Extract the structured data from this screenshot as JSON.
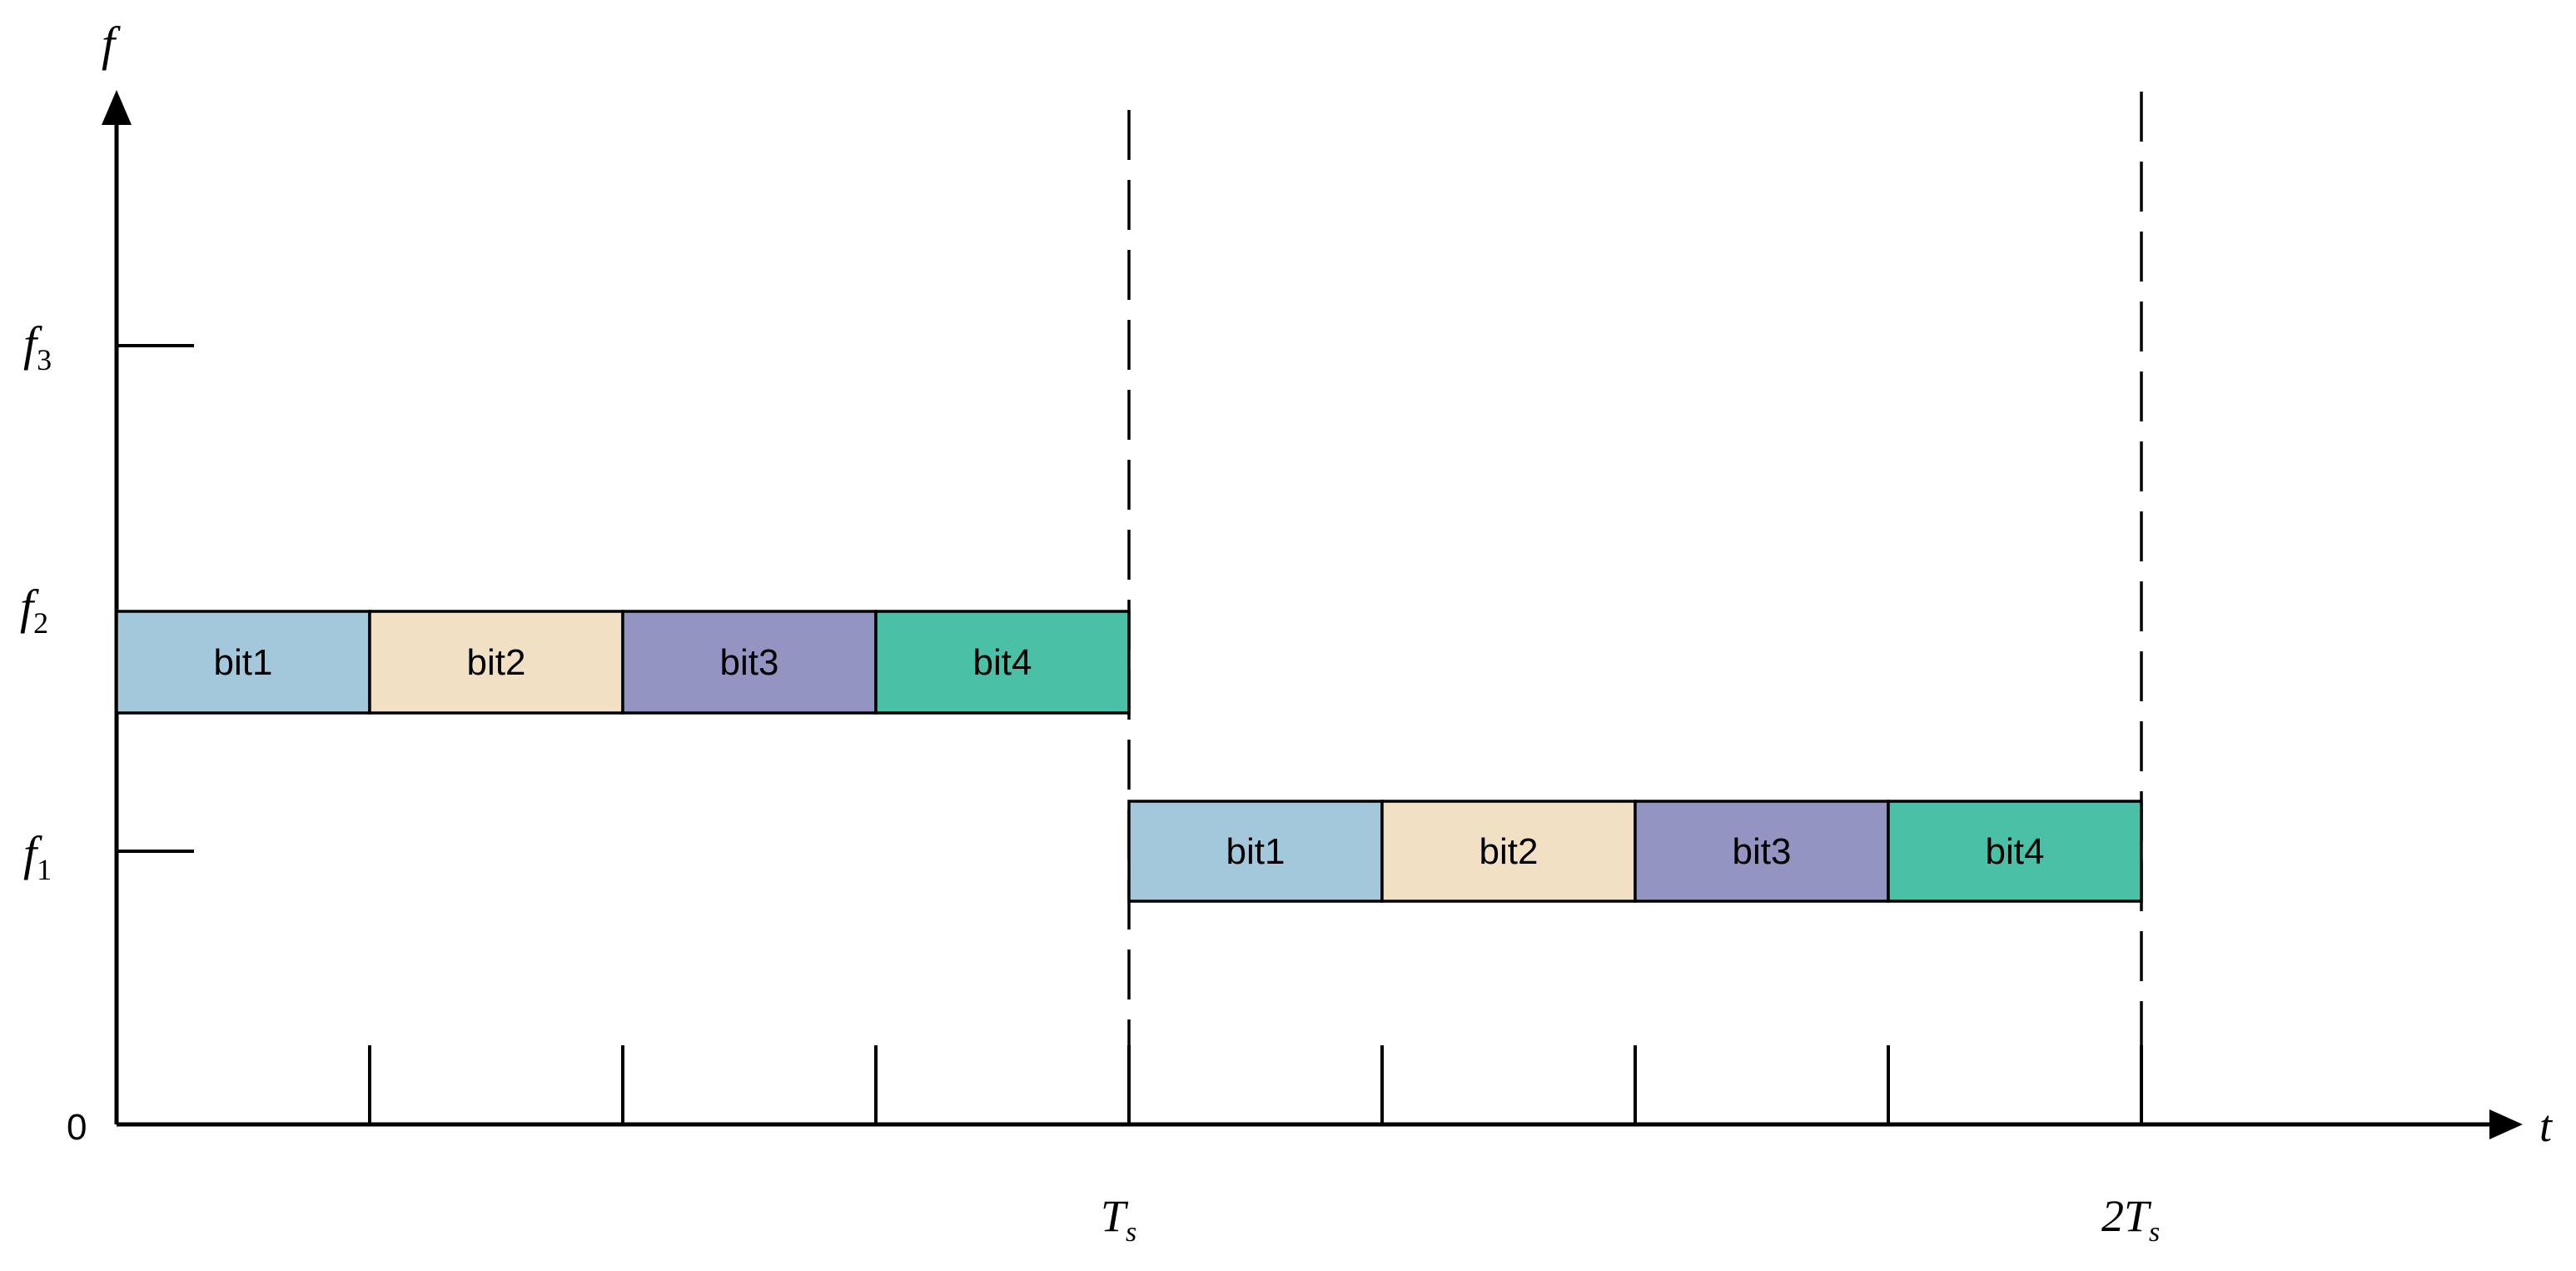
{
  "axes": {
    "y_label": "f",
    "x_label": "t",
    "origin_label": "0"
  },
  "frequency_labels": [
    {
      "main": "f",
      "sub": "3"
    },
    {
      "main": "f",
      "sub": "2"
    },
    {
      "main": "f",
      "sub": "1"
    }
  ],
  "time_labels": [
    {
      "main": "T",
      "sub": "s"
    },
    {
      "main": "2T",
      "sub": "s"
    }
  ],
  "hops": [
    {
      "frequency": "f2",
      "bits": [
        {
          "label": "bit1",
          "color": "#a3c8dc"
        },
        {
          "label": "bit2",
          "color": "#f1e0c4"
        },
        {
          "label": "bit3",
          "color": "#9494c2"
        },
        {
          "label": "bit4",
          "color": "#4ac0a6"
        }
      ]
    },
    {
      "frequency": "f1",
      "bits": [
        {
          "label": "bit1",
          "color": "#a3c8dc"
        },
        {
          "label": "bit2",
          "color": "#f1e0c4"
        },
        {
          "label": "bit3",
          "color": "#9494c2"
        },
        {
          "label": "bit4",
          "color": "#4ac0a6"
        }
      ]
    }
  ]
}
